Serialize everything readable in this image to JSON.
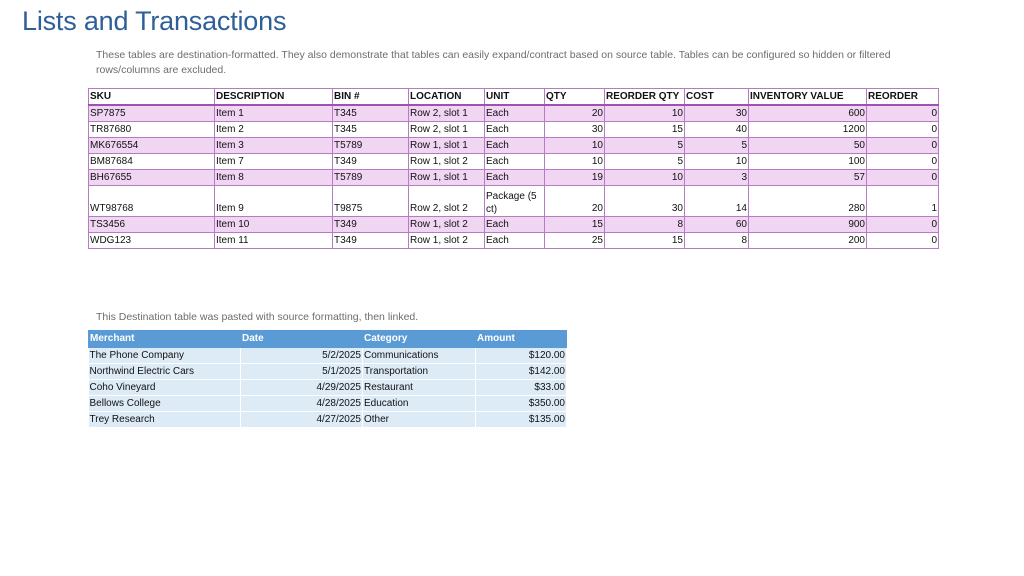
{
  "page": {
    "title": "Lists and Transactions",
    "description": "These tables are destination-formatted. They also demonstrate that tables can easily expand/contract based on source table. Tables can be configured so hidden or filtered rows/columns are excluded.",
    "caption2": "This Destination table was pasted with source formatting, then linked."
  },
  "inventory": {
    "headers": [
      "SKU",
      "DESCRIPTION",
      "BIN #",
      "LOCATION",
      "UNIT",
      "QTY",
      "REORDER QTY",
      "COST",
      "INVENTORY VALUE",
      "REORDER"
    ],
    "rows": [
      [
        "SP7875",
        "Item 1",
        "T345",
        "Row 2, slot 1",
        "Each",
        "20",
        "10",
        "30",
        "600",
        "0"
      ],
      [
        "TR87680",
        "Item 2",
        "T345",
        "Row 2, slot 1",
        "Each",
        "30",
        "15",
        "40",
        "1200",
        "0"
      ],
      [
        "MK676554",
        "Item 3",
        "T5789",
        "Row 1, slot 1",
        "Each",
        "10",
        "5",
        "5",
        "50",
        "0"
      ],
      [
        "BM87684",
        "Item 7",
        "T349",
        "Row 1, slot 2",
        "Each",
        "10",
        "5",
        "10",
        "100",
        "0"
      ],
      [
        "BH67655",
        "Item 8",
        "T5789",
        "Row 1, slot 1",
        "Each",
        "19",
        "10",
        "3",
        "57",
        "0"
      ],
      [
        "WT98768",
        "Item 9",
        "T9875",
        "Row 2, slot 2",
        "Package (5 ct)",
        "20",
        "30",
        "14",
        "280",
        "1"
      ],
      [
        "TS3456",
        "Item 10",
        "T349",
        "Row 1, slot 2",
        "Each",
        "15",
        "8",
        "60",
        "900",
        "0"
      ],
      [
        "WDG123",
        "Item 11",
        "T349",
        "Row 1, slot 2",
        "Each",
        "25",
        "15",
        "8",
        "200",
        "0"
      ]
    ]
  },
  "transactions": {
    "headers": [
      "Merchant",
      "Date",
      "Category",
      "Amount"
    ],
    "rows": [
      [
        "The Phone Company",
        "5/2/2025",
        "Communications",
        "$120.00"
      ],
      [
        "Northwind Electric Cars",
        "5/1/2025",
        "Transportation",
        "$142.00"
      ],
      [
        "Coho Vineyard",
        "4/29/2025",
        "Restaurant",
        "$33.00"
      ],
      [
        "Bellows College",
        "4/28/2025",
        "Education",
        "$350.00"
      ],
      [
        "Trey Research",
        "4/27/2025",
        "Other",
        "$135.00"
      ]
    ]
  }
}
